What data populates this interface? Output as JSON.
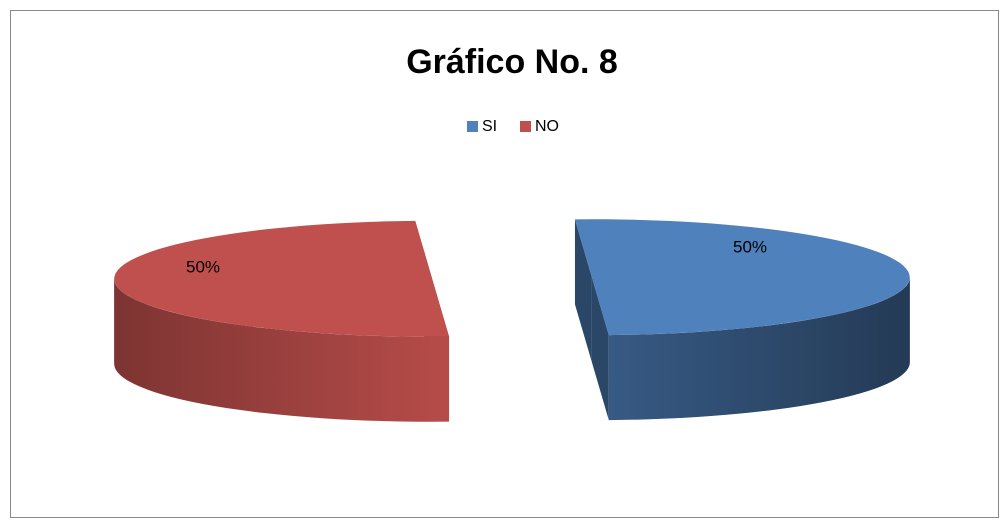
{
  "chart_data": {
    "type": "pie",
    "title": "Gráfico No. 8",
    "categories": [
      "SI",
      "NO"
    ],
    "values": [
      50,
      50
    ],
    "value_labels": [
      "50%",
      "50%"
    ],
    "colors": [
      "#4f81bd",
      "#c0504d"
    ],
    "legend": "top"
  }
}
